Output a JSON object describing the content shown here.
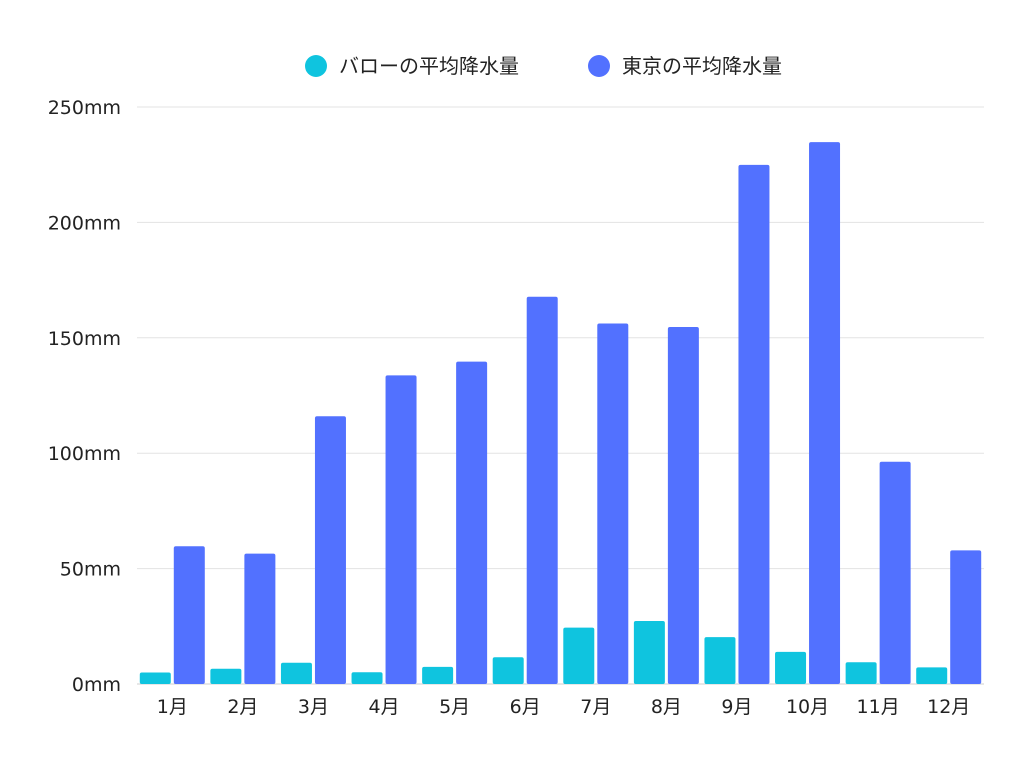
{
  "chart_data": {
    "type": "bar",
    "categories": [
      "1月",
      "2月",
      "3月",
      "4月",
      "5月",
      "6月",
      "7月",
      "8月",
      "9月",
      "10月",
      "11月",
      "12月"
    ],
    "series": [
      {
        "name": "バローの平均降水量",
        "color": "#0fc4df",
        "values": [
          5,
          6.6,
          9.2,
          5.1,
          7.4,
          11.6,
          24.4,
          27.3,
          20.3,
          13.9,
          9.4,
          7.2
        ]
      },
      {
        "name": "東京の平均降水量",
        "color": "#5271ff",
        "values": [
          59.7,
          56.5,
          116,
          133.7,
          139.7,
          167.8,
          156.2,
          154.7,
          224.9,
          234.8,
          96.3,
          57.9
        ]
      }
    ],
    "ylim": [
      0,
      250
    ],
    "yticks": [
      0,
      50,
      100,
      150,
      200,
      250
    ],
    "ytick_labels": [
      "0mm",
      "50mm",
      "100mm",
      "150mm",
      "200mm",
      "250mm"
    ],
    "legend_position": "top-center",
    "grid": true
  }
}
